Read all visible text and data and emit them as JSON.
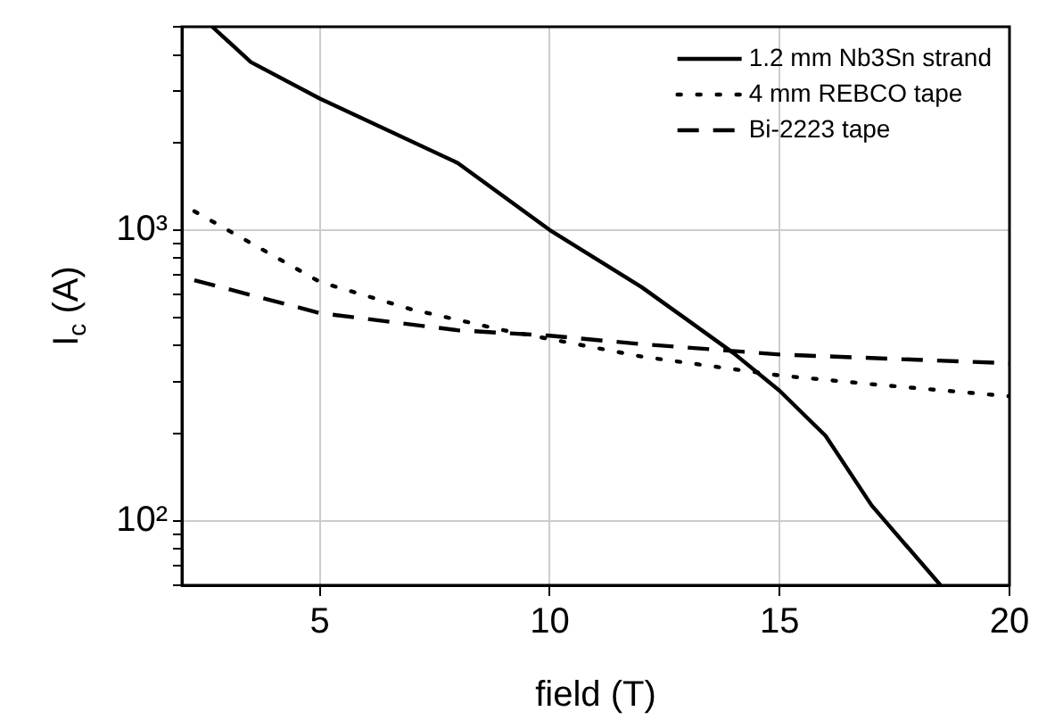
{
  "chart_data": {
    "type": "line",
    "xlabel": "field (T)",
    "ylabel": "I$_{c}$ (A)",
    "log": "y",
    "grid": true,
    "legend": "top right",
    "marker": "none",
    "xlim": [
      2,
      20
    ],
    "xticks": [
      5,
      10,
      15,
      20
    ],
    "ylim": [
      60,
      5000
    ],
    "yticks": [
      {
        "value": 60,
        "label": null
      },
      {
        "value": 70,
        "label": null
      },
      {
        "value": 80,
        "label": null
      },
      {
        "value": 90,
        "label": null
      },
      {
        "value": 100,
        "label": "10²"
      },
      {
        "value": 200,
        "label": null
      },
      {
        "value": 300,
        "label": null
      },
      {
        "value": 400,
        "label": null
      },
      {
        "value": 500,
        "label": null
      },
      {
        "value": 600,
        "label": null
      },
      {
        "value": 700,
        "label": null
      },
      {
        "value": 800,
        "label": null
      },
      {
        "value": 900,
        "label": null
      },
      {
        "value": 1000,
        "label": "10³"
      },
      {
        "value": 2000,
        "label": null
      },
      {
        "value": 3000,
        "label": null
      },
      {
        "value": 4000,
        "label": null
      },
      {
        "value": 5000,
        "label": null
      }
    ],
    "series": [
      {
        "name": "1.2 mm Nb3Sn strand",
        "color": "#000000",
        "line_style": "solid",
        "x": [
          2.66,
          3.5,
          5,
          8,
          10,
          12,
          14,
          15,
          16,
          17,
          18.5
        ],
        "values": [
          5000,
          3780,
          2830,
          1700,
          1000,
          636,
          377,
          280,
          196,
          113,
          60
        ]
      },
      {
        "name": "4 mm REBCO tape",
        "color": "#000000",
        "line_style": "dotted",
        "x": [
          2.27,
          5,
          7,
          9,
          12,
          15,
          17,
          20
        ],
        "values": [
          1160,
          663,
          533,
          452,
          367,
          316,
          295,
          268
        ]
      },
      {
        "name": "Bi-2223 tape",
        "color": "#000000",
        "line_style": "dashed",
        "x": [
          2.27,
          5,
          8,
          10,
          12,
          15,
          20
        ],
        "values": [
          672,
          518,
          452,
          433,
          405,
          373,
          348
        ]
      }
    ]
  }
}
